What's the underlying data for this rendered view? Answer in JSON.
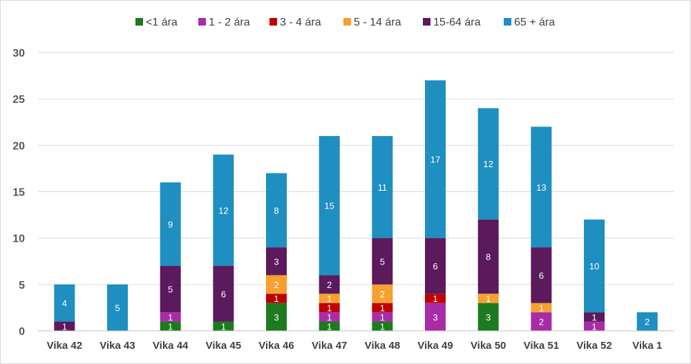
{
  "chart_data": {
    "type": "bar",
    "stacked": true,
    "categories": [
      "Vika 42",
      "Vika 43",
      "Vika 44",
      "Vika 45",
      "Vika 46",
      "Vika 47",
      "Vika 48",
      "Vika 49",
      "Vika 50",
      "Vika 51",
      "Vika 52",
      "Vika 1"
    ],
    "series": [
      {
        "name": "<1 ára",
        "color": "#1e7a1e",
        "values": [
          0,
          0,
          1,
          1,
          3,
          1,
          1,
          0,
          3,
          0,
          0,
          0
        ]
      },
      {
        "name": "1 - 2 ára",
        "color": "#a82ca8",
        "values": [
          0,
          0,
          1,
          0,
          0,
          1,
          1,
          3,
          0,
          2,
          1,
          0
        ]
      },
      {
        "name": "3 - 4 ára",
        "color": "#c00000",
        "values": [
          0,
          0,
          0,
          0,
          1,
          1,
          1,
          1,
          0,
          0,
          0,
          0
        ]
      },
      {
        "name": "5 - 14 ára",
        "color": "#f5a030",
        "values": [
          0,
          0,
          0,
          0,
          2,
          1,
          2,
          0,
          1,
          1,
          0,
          0
        ]
      },
      {
        "name": "15-64 ára",
        "color": "#5b1a5b",
        "values": [
          1,
          0,
          5,
          6,
          3,
          2,
          5,
          6,
          8,
          6,
          1,
          0
        ]
      },
      {
        "name": "65 + ára",
        "color": "#1e8fc0",
        "values": [
          4,
          5,
          9,
          12,
          8,
          15,
          11,
          17,
          12,
          13,
          10,
          2
        ]
      }
    ],
    "yticks": [
      "0",
      "5",
      "10",
      "15",
      "20",
      "25",
      "30"
    ],
    "ylim": [
      0,
      30
    ],
    "grid": true,
    "legend": "top",
    "title": "",
    "xlabel": "",
    "ylabel": ""
  }
}
